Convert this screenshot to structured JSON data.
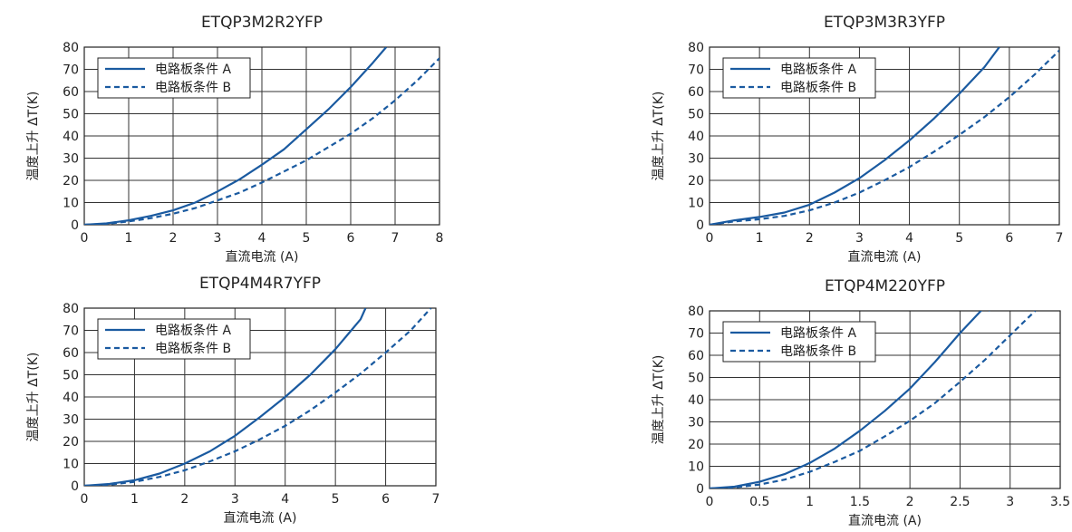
{
  "chart_data": [
    {
      "type": "line",
      "title": "ETQP3M2R2YFP",
      "xlabel": "直流电流 (A)",
      "ylabel": "温度上升 ΔT(K)",
      "xlim": [
        0,
        8
      ],
      "ylim": [
        0,
        80
      ],
      "xticks": [
        0,
        1,
        2,
        3,
        4,
        5,
        6,
        7,
        8
      ],
      "yticks": [
        0,
        10,
        20,
        30,
        40,
        50,
        60,
        70,
        80
      ],
      "grid": true,
      "legend_position": "top-left",
      "series": [
        {
          "name": "电路板条件 A",
          "style": "solid",
          "x": [
            0,
            0.5,
            1,
            1.5,
            2,
            2.5,
            3,
            3.5,
            4,
            4.5,
            5,
            5.5,
            6,
            6.5,
            6.8
          ],
          "y": [
            0,
            0.6,
            2,
            4,
            6.5,
            10,
            15,
            20.5,
            27,
            34,
            43,
            52,
            62,
            73,
            80
          ]
        },
        {
          "name": "电路板条件 B",
          "style": "dashed",
          "x": [
            0,
            0.5,
            1,
            1.5,
            2,
            2.5,
            3,
            3.5,
            4,
            4.5,
            5,
            5.5,
            6,
            6.5,
            7,
            7.5,
            8
          ],
          "y": [
            0,
            0.4,
            1.5,
            3,
            5,
            7.5,
            11,
            14.5,
            19,
            24,
            29,
            35,
            41,
            48,
            56,
            65,
            75
          ]
        }
      ]
    },
    {
      "type": "line",
      "title": "ETQP3M3R3YFP",
      "xlabel": "直流电流 (A)",
      "ylabel": "温度上升 ΔT(K)",
      "xlim": [
        0,
        7
      ],
      "ylim": [
        0,
        80
      ],
      "xticks": [
        0,
        1,
        2,
        3,
        4,
        5,
        6,
        7
      ],
      "yticks": [
        0,
        10,
        20,
        30,
        40,
        50,
        60,
        70,
        80
      ],
      "grid": true,
      "legend_position": "top-left",
      "series": [
        {
          "name": "电路板条件 A",
          "style": "solid",
          "x": [
            0,
            0.5,
            1,
            1.5,
            2,
            2.5,
            3,
            3.5,
            4,
            4.5,
            5,
            5.5,
            5.8
          ],
          "y": [
            0,
            2,
            3.5,
            5.5,
            9,
            14.5,
            21,
            29,
            38,
            48,
            59,
            71,
            80
          ]
        },
        {
          "name": "电路板条件 B",
          "style": "dashed",
          "x": [
            0,
            0.5,
            1,
            1.5,
            2,
            2.5,
            3,
            3.5,
            4,
            4.5,
            5,
            5.5,
            6,
            6.5,
            7
          ],
          "y": [
            0,
            1.5,
            2.5,
            4,
            6.5,
            10,
            14.5,
            20,
            26,
            33,
            40.5,
            48.5,
            57.5,
            67.5,
            78.5
          ]
        }
      ]
    },
    {
      "type": "line",
      "title": "ETQP4M4R7YFP",
      "xlabel": "直流电流 (A)",
      "ylabel": "温度上升 ΔT(K)",
      "xlim": [
        0,
        7
      ],
      "ylim": [
        0,
        80
      ],
      "xticks": [
        0,
        1,
        2,
        3,
        4,
        5,
        6,
        7
      ],
      "yticks": [
        0,
        10,
        20,
        30,
        40,
        50,
        60,
        70,
        80
      ],
      "grid": true,
      "legend_position": "top-left",
      "series": [
        {
          "name": "电路板条件 A",
          "style": "solid",
          "x": [
            0,
            0.5,
            1,
            1.5,
            2,
            2.5,
            3,
            3.5,
            4,
            4.5,
            5,
            5.5,
            5.6
          ],
          "y": [
            0,
            0.8,
            2.5,
            5.5,
            10,
            15.5,
            22.5,
            31,
            40,
            50,
            61.5,
            75,
            80
          ]
        },
        {
          "name": "电路板条件 B",
          "style": "dashed",
          "x": [
            0,
            0.5,
            1,
            1.5,
            2,
            2.5,
            3,
            3.5,
            4,
            4.5,
            5,
            5.5,
            6,
            6.5,
            6.9
          ],
          "y": [
            0,
            0.5,
            1.8,
            4,
            7,
            11,
            15.5,
            21,
            27,
            34,
            42,
            50.5,
            60,
            70,
            80
          ]
        }
      ]
    },
    {
      "type": "line",
      "title": "ETQP4M220YFP",
      "xlabel": "直流电流 (A)",
      "ylabel": "温度上升 ΔT(K)",
      "xlim": [
        0,
        3.5
      ],
      "ylim": [
        0,
        80
      ],
      "xticks": [
        0,
        0.5,
        1,
        1.5,
        2,
        2.5,
        3,
        3.5
      ],
      "yticks": [
        0,
        10,
        20,
        30,
        40,
        50,
        60,
        70,
        80
      ],
      "grid": true,
      "legend_position": "top-left",
      "series": [
        {
          "name": "电路板条件 A",
          "style": "solid",
          "x": [
            0,
            0.25,
            0.5,
            0.75,
            1,
            1.25,
            1.5,
            1.75,
            2,
            2.25,
            2.5,
            2.75,
            2.8
          ],
          "y": [
            0,
            0.8,
            3,
            6.5,
            11.5,
            18,
            26,
            35,
            45,
            57,
            70,
            82,
            80
          ]
        },
        {
          "name": "电路板条件 B",
          "style": "dashed",
          "x": [
            0,
            0.25,
            0.5,
            0.75,
            1,
            1.25,
            1.5,
            1.75,
            2,
            2.25,
            2.5,
            2.75,
            3,
            3.25
          ],
          "y": [
            0,
            0.5,
            1.8,
            4,
            7.5,
            12,
            17,
            23.5,
            30.5,
            38.5,
            48,
            58,
            69,
            80
          ]
        }
      ]
    }
  ]
}
